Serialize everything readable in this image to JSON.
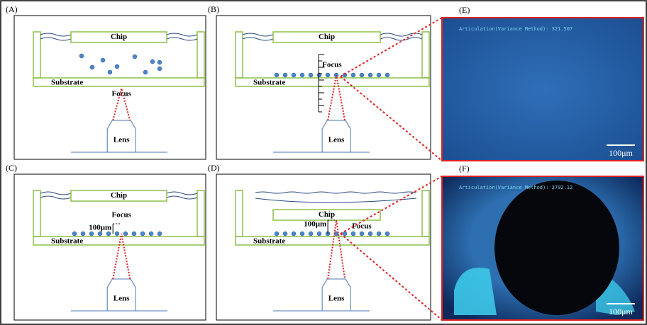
{
  "panels": [
    {
      "label": "(A)",
      "chip": "Chip",
      "substrate": "Substrate",
      "focus": "Focus",
      "lens": "Lens"
    },
    {
      "label": "(B)",
      "chip": "Chip",
      "substrate": "Substrate",
      "focus": "Focus",
      "lens": "Lens"
    },
    {
      "label": "(C)",
      "chip": "Chip",
      "substrate": "Substrate",
      "focus": "Focus",
      "lens": "Lens",
      "distance": "100μm"
    },
    {
      "label": "(D)",
      "chip": "Chip",
      "substrate": "Substrate",
      "focus": "Focus",
      "lens": "Lens",
      "distance": "100μm"
    }
  ],
  "micrographs": [
    {
      "label": "(E)",
      "caption": "Articulation(Variance Method): 321.507",
      "scale": "100μm"
    },
    {
      "label": "(F)",
      "caption": "Articulation(Variance Method): 3792.12",
      "scale": "100μm"
    }
  ]
}
